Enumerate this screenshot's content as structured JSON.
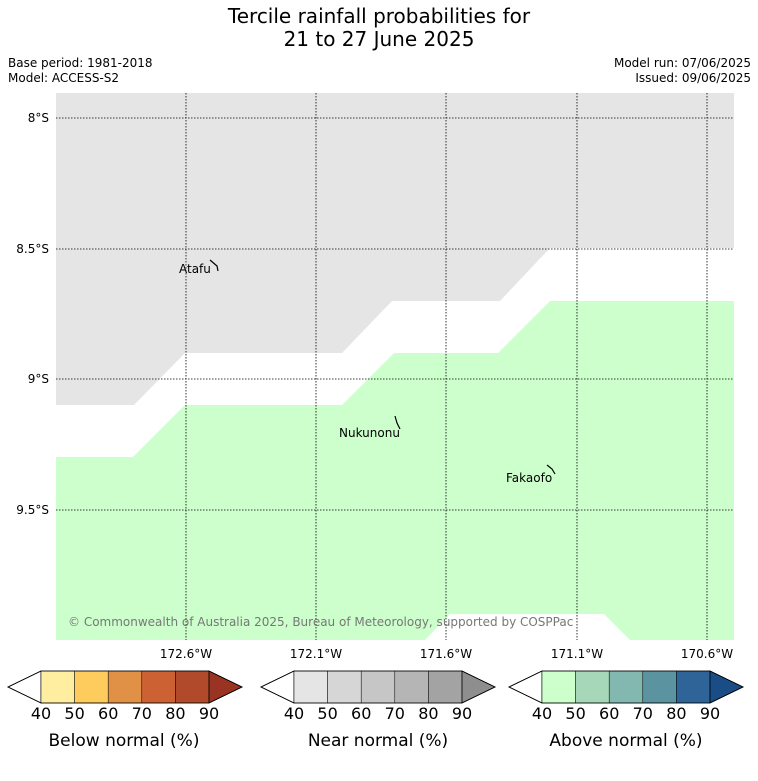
{
  "title": {
    "line1": "Tercile rainfall probabilities for",
    "line2": "21 to 27 June 2025"
  },
  "metadata": {
    "base_period": "Base period: 1981-2018",
    "model": "Model: ACCESS-S2",
    "model_run": "Model run: 07/06/2025",
    "issued": "Issued: 09/06/2025"
  },
  "map": {
    "lat_labels": [
      "8°S",
      "8.5°S",
      "9°S",
      "9.5°S"
    ],
    "lon_labels": [
      "172.6°W",
      "172.1°W",
      "171.6°W",
      "171.1°W",
      "170.6°W"
    ],
    "places": [
      "Atafu",
      "Nukunonu",
      "Fakaofo"
    ],
    "copyright": "© Commonwealth of Australia 2025, Bureau of Meteorology, supported by COSPPac",
    "colors": {
      "near_normal_fill": "#e5e5e5",
      "above_normal_fill": "#ccffcc",
      "no_signal": "#ffffff"
    }
  },
  "colorbars": [
    {
      "name": "below",
      "label": "Below normal (%)",
      "ticks": [
        "40",
        "50",
        "60",
        "70",
        "80",
        "90"
      ],
      "colors": [
        "#ffffff",
        "#ffeda0",
        "#fecc5c",
        "#e09145",
        "#cc6133",
        "#b04a2a",
        "#993322"
      ]
    },
    {
      "name": "near",
      "label": "Near normal (%)",
      "ticks": [
        "40",
        "50",
        "60",
        "70",
        "80",
        "90"
      ],
      "colors": [
        "#ffffff",
        "#e5e5e5",
        "#d6d6d6",
        "#c6c6c6",
        "#b5b5b5",
        "#a3a3a3",
        "#8e8e8e"
      ]
    },
    {
      "name": "above",
      "label": "Above normal (%)",
      "ticks": [
        "40",
        "50",
        "60",
        "70",
        "80",
        "90"
      ],
      "colors": [
        "#ffffff",
        "#ccffcc",
        "#a6d7b8",
        "#82b8b0",
        "#5b94a0",
        "#2e6497",
        "#1a4c85"
      ]
    }
  ]
}
